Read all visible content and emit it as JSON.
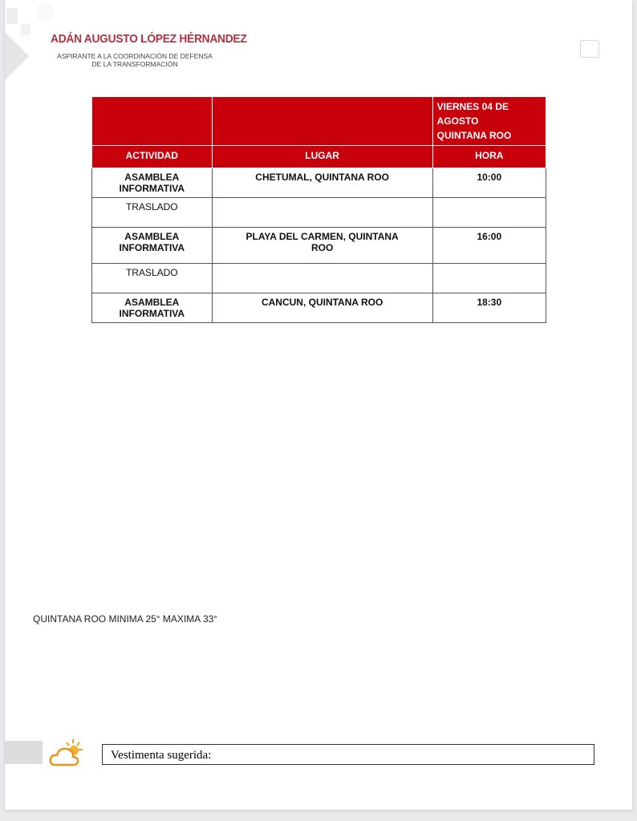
{
  "header": {
    "name": "ADÁN AUGUSTO LÓPEZ HÉRNANDEZ",
    "subtitle_line1": "ASPIRANTE A LA COORDINACIÓN DE DEFENSA",
    "subtitle_line2": "DE LA TRANSFORMACIÓN",
    "icon": "calendar-icon"
  },
  "schedule": {
    "date_line1": "VIERNES  04 DE AGOSTO",
    "date_line2": "QUINTANA ROO",
    "columns": [
      "ACTIVIDAD",
      "LUGAR",
      "HORA"
    ],
    "rows": [
      [
        "ASAMBLEA INFORMATIVA",
        "CHETUMAL, QUINTANA ROO",
        "10:00"
      ],
      [
        "TRASLADO",
        "",
        ""
      ],
      [
        "ASAMBLEA INFORMATIVA",
        "PLAYA DEL CARMEN, QUINTANA ROO",
        "16:00"
      ],
      [
        "TRASLADO",
        "",
        ""
      ],
      [
        "ASAMBLEA INFORMATIVA",
        "CANCUN, QUINTANA ROO",
        "18:30"
      ]
    ],
    "accent": "#c8000b"
  },
  "weather": {
    "text": "QUINTANA ROO MINIMA 25° MAXIMA 33°",
    "icon": "partly-sunny-icon"
  },
  "clothing": {
    "label": "Vestimenta sugerida:"
  }
}
